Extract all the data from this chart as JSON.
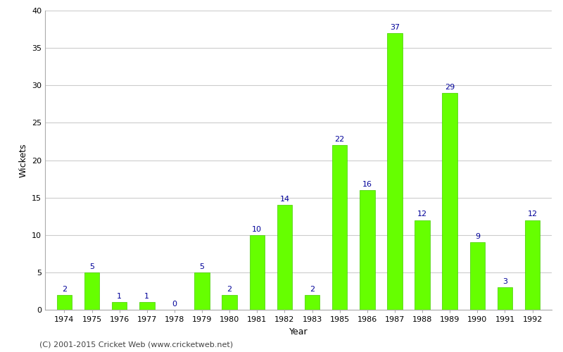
{
  "years": [
    "1974",
    "1975",
    "1976",
    "1977",
    "1978",
    "1979",
    "1980",
    "1981",
    "1982",
    "1983",
    "1985",
    "1986",
    "1987",
    "1988",
    "1989",
    "1990",
    "1991",
    "1992"
  ],
  "values": [
    2,
    5,
    1,
    1,
    0,
    5,
    2,
    10,
    14,
    2,
    22,
    16,
    37,
    12,
    29,
    9,
    3,
    12
  ],
  "bar_color": "#66ff00",
  "bar_edge_color": "#44cc00",
  "label_color": "#000099",
  "xlabel": "Year",
  "ylabel": "Wickets",
  "ylim": [
    0,
    40
  ],
  "yticks": [
    0,
    5,
    10,
    15,
    20,
    25,
    30,
    35,
    40
  ],
  "background_color": "#ffffff",
  "grid_color": "#cccccc",
  "label_fontsize": 8,
  "axis_label_fontsize": 9,
  "tick_fontsize": 8,
  "bar_width": 0.55,
  "footer_text": "(C) 2001-2015 Cricket Web (www.cricketweb.net)",
  "footer_fontsize": 8,
  "footer_color": "#444444"
}
